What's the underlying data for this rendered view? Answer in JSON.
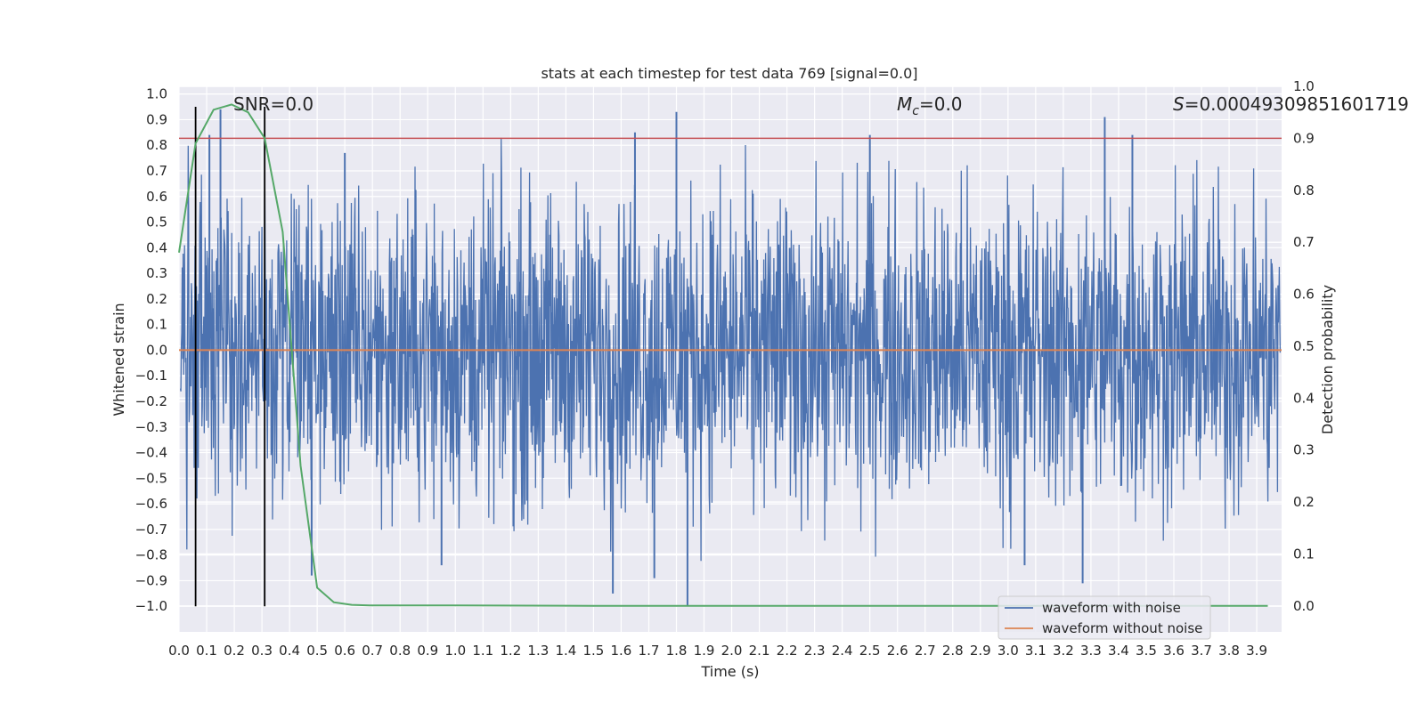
{
  "chart_data": {
    "type": "line",
    "title": "stats at each timestep for test data 769 [signal=0.0]",
    "xlabel": "Time (s)",
    "ylabel": "Whitened strain",
    "y2label": "Detection probability",
    "xlim": [
      0.0,
      3.99
    ],
    "ylim": [
      -1.1,
      1.03
    ],
    "y2lim": [
      -0.05,
      1.0
    ],
    "x_ticks": [
      "0.0",
      "0.1",
      "0.2",
      "0.3",
      "0.4",
      "0.5",
      "0.6",
      "0.7",
      "0.8",
      "0.9",
      "1.0",
      "1.1",
      "1.2",
      "1.3",
      "1.4",
      "1.5",
      "1.6",
      "1.7",
      "1.8",
      "1.9",
      "2.0",
      "2.1",
      "2.2",
      "2.3",
      "2.4",
      "2.5",
      "2.6",
      "2.7",
      "2.8",
      "2.9",
      "3.0",
      "3.1",
      "3.2",
      "3.3",
      "3.4",
      "3.5",
      "3.6",
      "3.7",
      "3.8",
      "3.9"
    ],
    "y_ticks": [
      "1.0",
      "0.9",
      "0.8",
      "0.7",
      "0.6",
      "0.5",
      "0.4",
      "0.3",
      "0.2",
      "0.1",
      "0.0",
      "−0.1",
      "−0.2",
      "−0.3",
      "−0.4",
      "−0.5",
      "−0.6",
      "−0.7",
      "−0.8",
      "−0.9",
      "−1.0"
    ],
    "y2_ticks": [
      "1.0",
      "0.9",
      "0.8",
      "0.7",
      "0.6",
      "0.5",
      "0.4",
      "0.3",
      "0.2",
      "0.1",
      "0.0"
    ],
    "grid": true,
    "legend_position": "lower-right",
    "annotations": {
      "snr_prefix": "SNR=",
      "snr_value": "0.0",
      "mc_symbol": "M",
      "mc_sub": "c",
      "mc_value": "=0.0",
      "s_symbol": "S",
      "s_value": "=0.00049309851601719"
    },
    "series": [
      {
        "name": "waveform with noise",
        "color": "#4c72b0",
        "axis": "left",
        "style": "noise",
        "amplitude_typical": 0.3,
        "peak_spikes": [
          {
            "x": 0.15,
            "y": 0.94
          },
          {
            "x": 0.11,
            "y": 0.84
          },
          {
            "x": 0.6,
            "y": 0.77
          },
          {
            "x": 1.65,
            "y": 0.85
          },
          {
            "x": 1.8,
            "y": 0.93
          },
          {
            "x": 2.5,
            "y": 0.84
          },
          {
            "x": 3.35,
            "y": 0.91
          },
          {
            "x": 3.45,
            "y": 0.84
          },
          {
            "x": 1.84,
            "y": -1.0
          },
          {
            "x": 1.57,
            "y": -0.95
          },
          {
            "x": 0.48,
            "y": -0.88
          },
          {
            "x": 3.27,
            "y": -0.91
          },
          {
            "x": 0.95,
            "y": -0.84
          },
          {
            "x": 3.06,
            "y": -0.84
          },
          {
            "x": 1.72,
            "y": -0.89
          }
        ]
      },
      {
        "name": "waveform without noise",
        "color": "#dd8452",
        "axis": "left",
        "x": [
          0.0,
          3.99
        ],
        "y": [
          0.0,
          0.0
        ]
      },
      {
        "name": "",
        "color": "#55a868",
        "axis": "right",
        "x": [
          0.0,
          0.06,
          0.125,
          0.19,
          0.25,
          0.31,
          0.375,
          0.44,
          0.5,
          0.56,
          0.625,
          0.69,
          0.75,
          1.0,
          1.5,
          2.0,
          2.5,
          3.0,
          3.5,
          3.94
        ],
        "y": [
          0.68,
          0.89,
          0.955,
          0.965,
          0.95,
          0.9,
          0.72,
          0.27,
          0.035,
          0.007,
          0.002,
          0.001,
          0.001,
          0.001,
          0.0,
          0.0,
          0.0,
          0.0,
          0.0,
          0.0
        ]
      }
    ],
    "threshold_line": {
      "axis": "right",
      "y": 0.9,
      "color": "#c44e52"
    },
    "vertical_markers": [
      {
        "x": 0.06,
        "color": "#000000"
      },
      {
        "x": 0.31,
        "color": "#000000"
      }
    ]
  }
}
